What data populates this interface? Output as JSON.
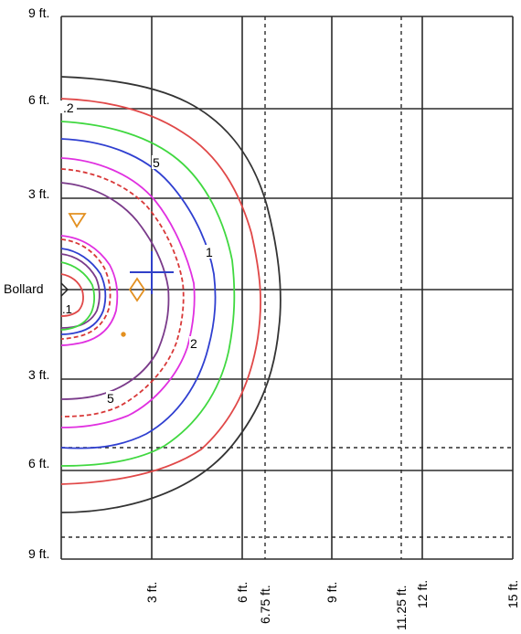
{
  "y_axis": {
    "labels": [
      "9 ft.",
      "6 ft.",
      "3 ft.",
      "Bollard",
      "3 ft.",
      "6 ft.",
      "9 ft."
    ]
  },
  "x_axis": {
    "labels": [
      "3 ft.",
      "6 ft.",
      "6.75 ft.",
      "9 ft.",
      "11.25 ft.",
      "12 ft.",
      "15 ft."
    ]
  },
  "contour_labels": [
    ".2",
    "5",
    "1",
    "2",
    "5",
    ".1"
  ],
  "colors": {
    "grid": "#2b2b2b",
    "contour_0_2": "#333333",
    "contour_0_5": "#e04848",
    "contour_1": "#40d840",
    "contour_2": "#2f3fd0",
    "contour_5": "#e030e0",
    "contour_dashed": "#d83838",
    "contour_inner": "#7a3a8a",
    "marker": "#e39020",
    "crosshair": "#3040c8"
  }
}
